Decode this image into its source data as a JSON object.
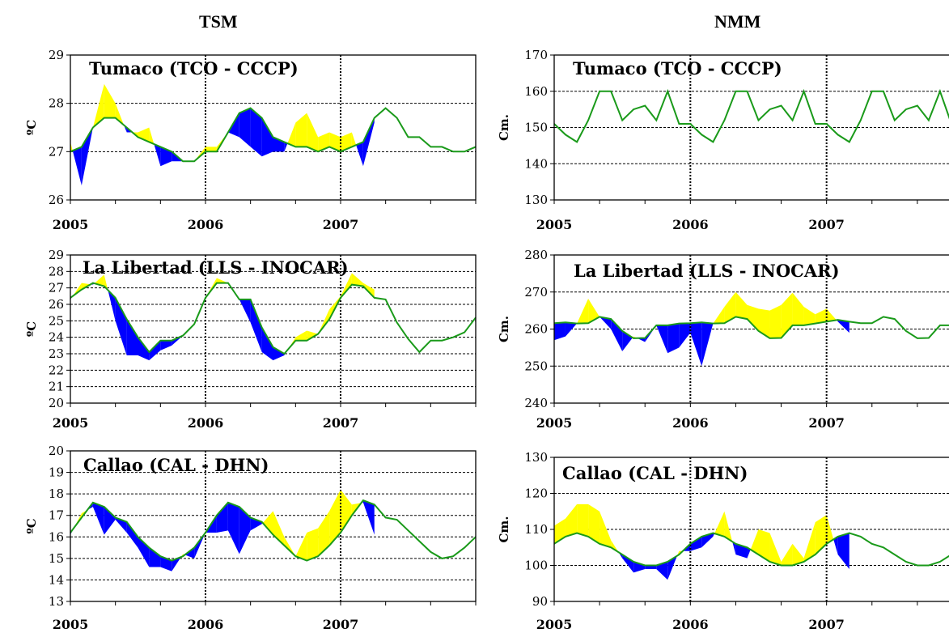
{
  "headers": {
    "left": "TSM",
    "right": "NMM"
  },
  "colors": {
    "anomaly_positive": "#ffff00",
    "anomaly_negative": "#0000ff",
    "climatology_line": "#1a9a1a"
  },
  "chart_data": [
    {
      "type": "area",
      "title": "Tumaco (TCO - CCCP)",
      "ylabel": "ºC",
      "ylim": [
        26,
        29
      ],
      "yticks": [
        26,
        27,
        28,
        29
      ],
      "xlim": [
        2005,
        2008
      ],
      "xtick_labels": [
        "2005",
        "2006",
        "2007"
      ],
      "dotted_vlines": [
        2006,
        2007
      ],
      "series": [
        {
          "name": "climatology",
          "x": [
            2005.0,
            2005.083,
            2005.167,
            2005.25,
            2005.333,
            2005.417,
            2005.5,
            2005.583,
            2005.667,
            2005.75,
            2005.833,
            2005.917,
            2006.0,
            2006.083,
            2006.167,
            2006.25,
            2006.333,
            2006.417,
            2006.5,
            2006.583,
            2006.667,
            2006.75,
            2006.833,
            2006.917,
            2007.0,
            2007.083,
            2007.167,
            2007.25,
            2007.333,
            2007.417,
            2007.5,
            2007.583,
            2007.667,
            2007.75,
            2007.833,
            2007.917,
            2008.0
          ],
          "y": [
            27.0,
            27.1,
            27.5,
            27.7,
            27.7,
            27.5,
            27.3,
            27.2,
            27.1,
            27.0,
            26.8,
            26.8,
            27.0,
            27.0,
            27.4,
            27.8,
            27.9,
            27.7,
            27.3,
            27.2,
            27.1,
            27.1,
            27.0,
            27.1,
            27.0,
            27.1,
            27.2,
            27.7,
            27.9,
            27.7,
            27.3,
            27.3,
            27.1,
            27.1,
            27.0,
            27.0,
            27.1
          ]
        },
        {
          "name": "observed",
          "x": [
            2005.0,
            2005.083,
            2005.167,
            2005.25,
            2005.333,
            2005.417,
            2005.5,
            2005.583,
            2005.667,
            2005.75,
            2005.833,
            2005.917,
            2006.0,
            2006.083,
            2006.167,
            2006.25,
            2006.333,
            2006.417,
            2006.5,
            2006.583,
            2006.667,
            2006.75,
            2006.833,
            2006.917,
            2007.0,
            2007.083,
            2007.167,
            2007.25
          ],
          "y": [
            27.2,
            26.3,
            27.5,
            28.4,
            28.0,
            27.4,
            27.4,
            27.5,
            26.7,
            26.8,
            26.8,
            26.8,
            27.1,
            27.1,
            27.4,
            27.3,
            27.1,
            26.9,
            27.0,
            27.0,
            27.6,
            27.8,
            27.3,
            27.4,
            27.3,
            27.4,
            26.7,
            27.6
          ]
        }
      ]
    },
    {
      "type": "area",
      "title": "La Libertad (LLS - INOCAR)",
      "ylabel": "ºC",
      "ylim": [
        20,
        29
      ],
      "yticks": [
        20,
        21,
        22,
        23,
        24,
        25,
        26,
        27,
        28,
        29
      ],
      "xlim": [
        2005,
        2008
      ],
      "xtick_labels": [
        "2005",
        "2006",
        "2007"
      ],
      "dotted_vlines": [
        2006,
        2007
      ],
      "series": [
        {
          "name": "climatology",
          "x": [
            2005.0,
            2005.083,
            2005.167,
            2005.25,
            2005.333,
            2005.417,
            2005.5,
            2005.583,
            2005.667,
            2005.75,
            2005.833,
            2005.917,
            2006.0,
            2006.083,
            2006.167,
            2006.25,
            2006.333,
            2006.417,
            2006.5,
            2006.583,
            2006.667,
            2006.75,
            2006.833,
            2006.917,
            2007.0,
            2007.083,
            2007.167,
            2007.25,
            2007.333,
            2007.417,
            2007.5,
            2007.583,
            2007.667,
            2007.75,
            2007.833,
            2007.917,
            2008.0
          ],
          "y": [
            26.4,
            26.9,
            27.3,
            27.1,
            26.4,
            25.1,
            24.0,
            23.1,
            23.8,
            23.8,
            24.1,
            24.8,
            26.4,
            27.3,
            27.3,
            26.3,
            26.3,
            24.6,
            23.4,
            23.0,
            23.8,
            23.8,
            24.2,
            25.1,
            26.4,
            27.2,
            27.1,
            26.4,
            26.3,
            24.9,
            23.9,
            23.1,
            23.8,
            23.8,
            24.0,
            24.3,
            25.2
          ]
        },
        {
          "name": "observed",
          "x": [
            2005.0,
            2005.083,
            2005.167,
            2005.25,
            2005.333,
            2005.417,
            2005.5,
            2005.583,
            2005.667,
            2005.75,
            2005.833,
            2005.917,
            2006.0,
            2006.083,
            2006.167,
            2006.25,
            2006.333,
            2006.417,
            2006.5,
            2006.583,
            2006.667,
            2006.75,
            2006.833,
            2006.917,
            2007.0,
            2007.083,
            2007.167,
            2007.25
          ],
          "y": [
            26.3,
            27.3,
            27.2,
            27.8,
            25.0,
            22.9,
            22.9,
            22.6,
            23.2,
            23.5,
            24.1,
            24.8,
            26.4,
            27.6,
            27.3,
            26.3,
            24.9,
            23.1,
            22.6,
            22.9,
            24.0,
            24.4,
            24.2,
            25.7,
            26.5,
            27.9,
            27.3,
            26.9
          ]
        }
      ]
    },
    {
      "type": "area",
      "title": "Callao (CAL - DHN)",
      "ylabel": "ºC",
      "ylim": [
        13,
        20
      ],
      "yticks": [
        13,
        14,
        15,
        16,
        17,
        18,
        19,
        20
      ],
      "xlim": [
        2005,
        2008
      ],
      "xtick_labels": [
        "2005",
        "2006",
        "2007"
      ],
      "dotted_vlines": [
        2006,
        2007
      ],
      "series": [
        {
          "name": "climatology",
          "x": [
            2005.0,
            2005.083,
            2005.167,
            2005.25,
            2005.333,
            2005.417,
            2005.5,
            2005.583,
            2005.667,
            2005.75,
            2005.833,
            2005.917,
            2006.0,
            2006.083,
            2006.167,
            2006.25,
            2006.333,
            2006.417,
            2006.5,
            2006.583,
            2006.667,
            2006.75,
            2006.833,
            2006.917,
            2007.0,
            2007.083,
            2007.167,
            2007.25,
            2007.333,
            2007.417,
            2007.5,
            2007.583,
            2007.667,
            2007.75,
            2007.833,
            2007.917,
            2008.0
          ],
          "y": [
            16.2,
            16.9,
            17.6,
            17.4,
            16.9,
            16.7,
            16.0,
            15.5,
            15.1,
            14.9,
            15.1,
            15.5,
            16.2,
            17.0,
            17.6,
            17.4,
            16.9,
            16.7,
            16.1,
            15.6,
            15.1,
            14.9,
            15.1,
            15.6,
            16.2,
            17.0,
            17.7,
            17.5,
            16.9,
            16.8,
            16.3,
            15.8,
            15.3,
            15.0,
            15.1,
            15.5,
            16.0
          ]
        },
        {
          "name": "observed",
          "x": [
            2005.0,
            2005.083,
            2005.167,
            2005.25,
            2005.333,
            2005.417,
            2005.5,
            2005.583,
            2005.667,
            2005.75,
            2005.833,
            2005.917,
            2006.0,
            2006.083,
            2006.167,
            2006.25,
            2006.333,
            2006.417,
            2006.5,
            2006.583,
            2006.667,
            2006.75,
            2006.833,
            2006.917,
            2007.0,
            2007.083,
            2007.167,
            2007.25
          ],
          "y": [
            16.1,
            17.1,
            17.4,
            16.1,
            16.8,
            16.2,
            15.5,
            14.6,
            14.6,
            14.4,
            15.2,
            15.0,
            16.2,
            16.2,
            16.3,
            15.2,
            16.3,
            16.6,
            17.2,
            16.0,
            15.1,
            16.2,
            16.4,
            17.2,
            18.2,
            17.5,
            17.6,
            16.1
          ]
        }
      ]
    },
    {
      "type": "area",
      "title": "Tumaco (TCO - CCCP)",
      "ylabel": "Cm.",
      "ylim": [
        130,
        170
      ],
      "yticks": [
        130,
        140,
        150,
        160,
        170
      ],
      "xlim": [
        2005,
        2008
      ],
      "xtick_labels": [
        "2005",
        "2006",
        "2007"
      ],
      "dotted_vlines": [
        2006,
        2007
      ],
      "series": [
        {
          "name": "observed",
          "x": [
            2005.0,
            2005.083,
            2005.167,
            2005.25,
            2005.333,
            2005.417,
            2005.5,
            2005.583,
            2005.667,
            2005.75,
            2005.833,
            2005.917,
            2006.0,
            2006.083,
            2006.167,
            2006.25,
            2006.333,
            2006.417,
            2006.5,
            2006.583,
            2006.667,
            2006.75,
            2006.833,
            2006.917,
            2007.0,
            2007.083,
            2007.167,
            2007.25,
            2007.333,
            2007.417,
            2007.5,
            2007.583,
            2007.667,
            2007.75,
            2007.833,
            2007.917,
            2008.0
          ],
          "y": [
            151,
            148,
            146,
            152,
            160,
            160,
            152,
            155,
            156,
            152,
            160,
            151,
            151,
            148,
            146,
            152,
            160,
            160,
            152,
            155,
            156,
            152,
            160,
            151,
            151,
            148,
            146,
            152,
            160,
            160,
            152,
            155,
            156,
            152,
            160,
            151,
            151
          ]
        }
      ]
    },
    {
      "type": "area",
      "title": "La Libertad (LLS - INOCAR)",
      "ylabel": "Cm.",
      "ylim": [
        240,
        280
      ],
      "yticks": [
        240,
        250,
        260,
        270,
        280
      ],
      "xlim": [
        2005,
        2008
      ],
      "xtick_labels": [
        "2005",
        "2006",
        "2007"
      ],
      "dotted_vlines": [
        2006,
        2007
      ],
      "series": [
        {
          "name": "climatology",
          "x": [
            2005.0,
            2005.083,
            2005.167,
            2005.25,
            2005.333,
            2005.417,
            2005.5,
            2005.583,
            2005.667,
            2005.75,
            2005.833,
            2005.917,
            2006.0,
            2006.083,
            2006.167,
            2006.25,
            2006.333,
            2006.417,
            2006.5,
            2006.583,
            2006.667,
            2006.75,
            2006.833,
            2006.917,
            2007.0,
            2007.083,
            2007.167,
            2007.25,
            2007.333,
            2007.417,
            2007.5,
            2007.583,
            2007.667,
            2007.75,
            2007.833,
            2007.917,
            2008.0
          ],
          "y": [
            261.6,
            261.8,
            261.5,
            261.6,
            263.3,
            262.7,
            259.5,
            257.5,
            257.6,
            261.0,
            261.0,
            261.5,
            261.6,
            261.8,
            261.5,
            261.6,
            263.3,
            262.7,
            259.5,
            257.5,
            257.6,
            261.0,
            261.0,
            261.5,
            262.0,
            262.5,
            262.0,
            261.6,
            261.6,
            263.3,
            262.7,
            259.5,
            257.5,
            257.6,
            261.0,
            261.0,
            261.5
          ]
        },
        {
          "name": "observed",
          "x": [
            2005.0,
            2005.083,
            2005.167,
            2005.25,
            2005.333,
            2005.417,
            2005.5,
            2005.583,
            2005.667,
            2005.75,
            2005.833,
            2005.917,
            2006.0,
            2006.083,
            2006.167,
            2006.25,
            2006.333,
            2006.417,
            2006.5,
            2006.583,
            2006.667,
            2006.75,
            2006.833,
            2006.917,
            2007.0,
            2007.083,
            2007.167
          ],
          "y": [
            257.0,
            258.0,
            261.5,
            268.2,
            263.3,
            260.0,
            254.0,
            258.0,
            256.5,
            261.0,
            253.5,
            255.0,
            259.0,
            250.0,
            261.5,
            266.0,
            270.0,
            266.5,
            265.5,
            265.0,
            266.5,
            269.8,
            266.0,
            264.0,
            265.5,
            262.0,
            259.0
          ]
        }
      ]
    },
    {
      "type": "area",
      "title": "Callao (CAL - DHN)",
      "ylabel": "Cm.",
      "ylim": [
        90,
        130
      ],
      "yticks": [
        90,
        100,
        110,
        120,
        130
      ],
      "xlim": [
        2005,
        2008
      ],
      "xtick_labels": [
        "2005",
        "2006",
        "2007"
      ],
      "dotted_vlines": [
        2006,
        2007
      ],
      "series": [
        {
          "name": "climatology",
          "x": [
            2005.0,
            2005.083,
            2005.167,
            2005.25,
            2005.333,
            2005.417,
            2005.5,
            2005.583,
            2005.667,
            2005.75,
            2005.833,
            2005.917,
            2006.0,
            2006.083,
            2006.167,
            2006.25,
            2006.333,
            2006.417,
            2006.5,
            2006.583,
            2006.667,
            2006.75,
            2006.833,
            2006.917,
            2007.0,
            2007.083,
            2007.167,
            2007.25,
            2007.333,
            2007.417,
            2007.5,
            2007.583,
            2007.667,
            2007.75,
            2007.833,
            2007.917,
            2008.0
          ],
          "y": [
            106,
            108,
            109,
            108,
            106,
            105,
            103,
            101,
            100,
            100,
            101,
            103,
            106,
            108,
            109,
            108,
            106,
            105,
            103,
            101,
            100,
            100,
            101,
            103,
            106,
            108,
            109,
            108,
            106,
            105,
            103,
            101,
            100,
            100,
            101,
            103,
            106
          ]
        },
        {
          "name": "observed",
          "x": [
            2005.0,
            2005.083,
            2005.167,
            2005.25,
            2005.333,
            2005.417,
            2005.5,
            2005.583,
            2005.667,
            2005.75,
            2005.833,
            2005.917,
            2006.0,
            2006.083,
            2006.167,
            2006.25,
            2006.333,
            2006.417,
            2006.5,
            2006.583,
            2006.667,
            2006.75,
            2006.833,
            2006.917,
            2007.0,
            2007.083,
            2007.167
          ],
          "y": [
            111,
            113,
            117,
            117,
            115,
            107,
            102,
            98,
            99,
            99,
            96,
            104,
            104,
            105,
            108,
            115,
            103,
            102,
            110,
            109,
            101,
            106,
            102,
            112,
            114,
            103,
            99
          ]
        }
      ]
    }
  ]
}
